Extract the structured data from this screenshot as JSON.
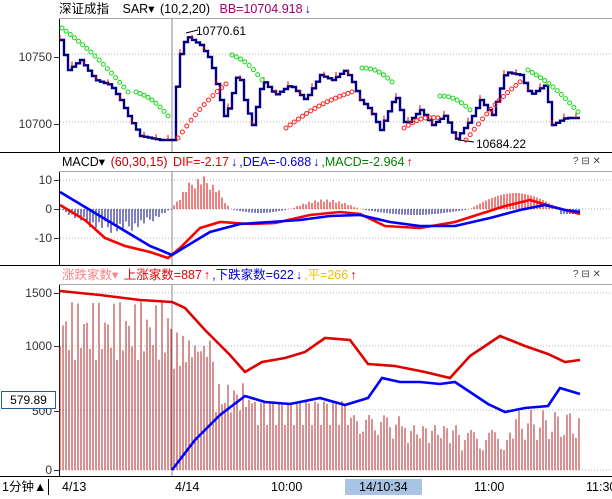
{
  "panel1": {
    "index_name": "深证成指",
    "indicator_label": "SAR▾",
    "params": "(10,2,20)",
    "bb_text": "BB=10704.918",
    "bb_arrow": "↓",
    "y_ticks": [
      "10750",
      "10700"
    ],
    "high_label": "10770.61",
    "low_label": "10684.22"
  },
  "panel2": {
    "indicator_label": "MACD▾",
    "params": "(60,30,15)",
    "dif_text": "DIF=-2.17",
    "dif_arrow": "↓",
    "dea_text": ",DEA=-0.688",
    "dea_arrow": "↓",
    "macd_text": ",MACD=-2.964",
    "macd_arrow": "↑",
    "y_ticks": [
      "10",
      "0",
      "-10"
    ]
  },
  "panel3": {
    "indicator_label": "涨跌家数▾",
    "up_text": "上涨家数=887",
    "up_arrow": "↑",
    "down_text": ",下跌家数=622",
    "down_arrow": "↓",
    "flat_text": ",平=266",
    "flat_arrow": "↑",
    "y_ticks": [
      "1500",
      "1000",
      "500",
      "0"
    ],
    "cursor_value": "579.89"
  },
  "window_buttons": {
    "help": "?",
    "restore": "⊟",
    "close": "✕"
  },
  "xaxis": {
    "period_label": "1分钟",
    "period_arrow": "▲",
    "labels": [
      "4/13",
      "4/14",
      "10:00",
      "14/10:34",
      "11:00",
      "11:30"
    ]
  },
  "colors": {
    "up": "#e00000",
    "down": "#000080",
    "sar_up": "#ff2020",
    "sar_down": "#18d818",
    "dif": "#ff0000",
    "dea": "#0000ff",
    "flat": "#f0c000",
    "grid": "#b0b0b0"
  }
}
